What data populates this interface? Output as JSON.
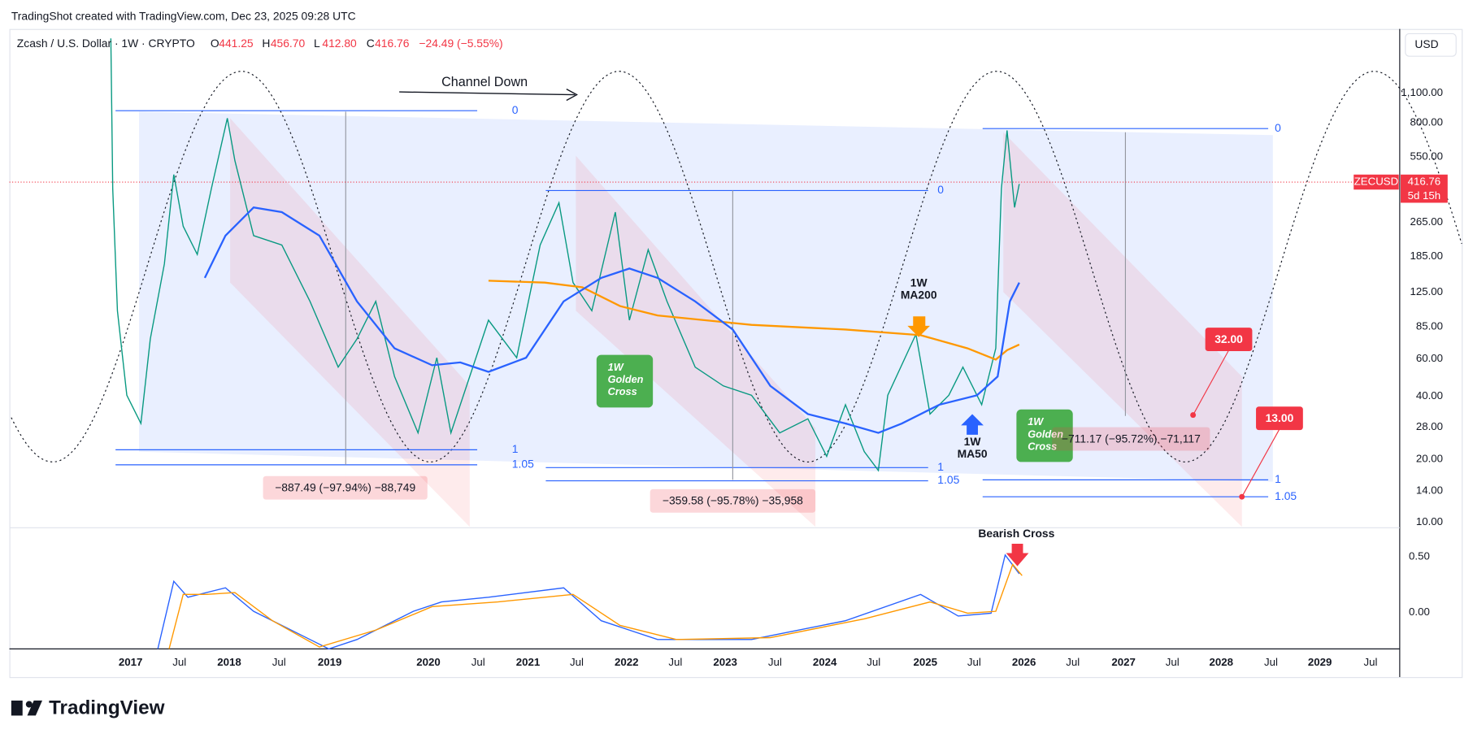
{
  "header": {
    "attribution": "TradingShot created with TradingView.com, Dec 23, 2025 09:28 UTC"
  },
  "legend": {
    "symbol": "Zcash / U.S. Dollar · 1W · CRYPTO",
    "ohlc": [
      {
        "label": "O",
        "value": "441.25"
      },
      {
        "label": "H",
        "value": "456.70"
      },
      {
        "label": "L",
        "value": "412.80"
      },
      {
        "label": "C",
        "value": "416.76"
      }
    ],
    "change": "−24.49 (−5.55%)"
  },
  "price_axis": {
    "currency": "USD",
    "labels": [
      "1,100.00",
      "800.00",
      "550.00",
      "265.00",
      "185.00",
      "125.00",
      "85.00",
      "60.00",
      "40.00",
      "28.00",
      "20.00",
      "14.00",
      "10.00"
    ],
    "macd_labels": [
      "0.50",
      "0.00"
    ]
  },
  "price_tag": {
    "symbol": "ZECUSD",
    "price": "416.76",
    "countdown": "5d 15h"
  },
  "time_axis": {
    "labels": [
      "2017",
      "Jul",
      "2018",
      "Jul",
      "2019",
      "2020",
      "Jul",
      "2021",
      "Jul",
      "2022",
      "Jul",
      "2023",
      "Jul",
      "2024",
      "Jul",
      "2025",
      "Jul",
      "2026",
      "Jul",
      "2027",
      "Jul",
      "2028",
      "Jul",
      "2029",
      "Jul"
    ]
  },
  "annotations": {
    "channel": "Channel Down",
    "ma200": [
      "1W",
      "MA200"
    ],
    "ma50": [
      "1W",
      "MA50"
    ],
    "golden_cross_1": [
      "1W",
      "Golden",
      "Cross"
    ],
    "golden_cross_2": [
      "1W",
      "Golden",
      "Cross"
    ],
    "bearish_cross": "Bearish Cross",
    "measures": [
      "−887.49 (−97.94%) −88,749",
      "−359.58 (−95.78%) −35,958",
      "−711.17 (−95.72%) −71,117"
    ],
    "targets": [
      "32.00",
      "13.00"
    ],
    "fib_levels": [
      [
        "0",
        "1",
        "1.05"
      ],
      [
        "0",
        "1",
        "1.05"
      ],
      [
        "0",
        "1",
        "1.05"
      ]
    ]
  },
  "footer": {
    "brand": "TradingView"
  }
}
